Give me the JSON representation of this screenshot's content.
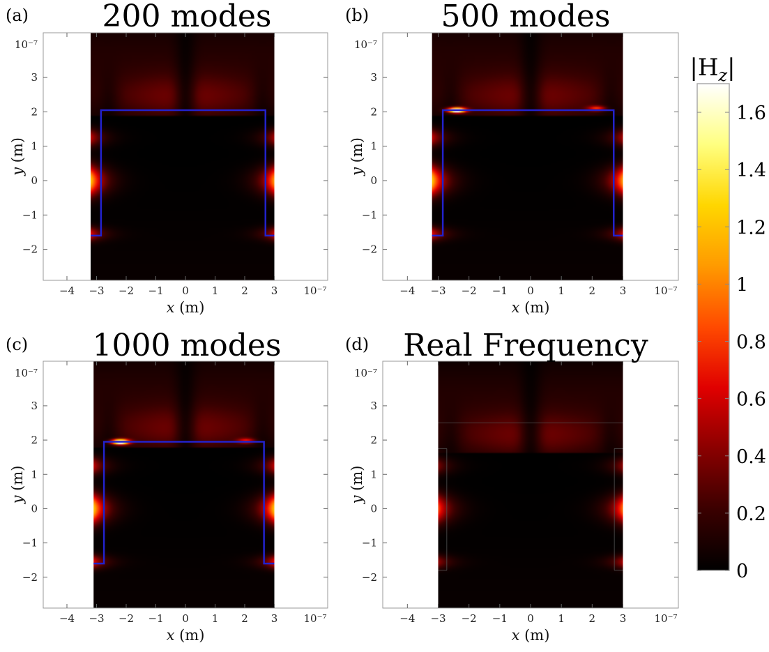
{
  "chart_data": [
    {
      "type": "heatmap",
      "panel_label": "(a)",
      "title": "200 modes",
      "xlabel": "x (m)",
      "ylabel": "y (m)",
      "x_scale_label": "10⁻⁷",
      "y_scale_label": "10⁻⁷",
      "xlim": [
        -4.8,
        4.8
      ],
      "ylim": [
        -2.9,
        4.3
      ],
      "x_ticks": [
        -4,
        -3,
        -2,
        -1,
        0,
        1,
        2,
        3
      ],
      "x_tick_labels": [
        "−4",
        "−3",
        "−2",
        "−1",
        "0",
        "1",
        "2",
        "3"
      ],
      "y_ticks": [
        -2,
        -1,
        0,
        1,
        2,
        3
      ],
      "y_tick_labels": [
        "−2",
        "−1",
        "0",
        "1",
        "2",
        "3"
      ],
      "field_x_range": [
        -3.2,
        3.0
      ],
      "field_y_range": [
        -2.9,
        4.3
      ],
      "outline": [
        [
          -3.2,
          -1.6
        ],
        [
          -2.85,
          -1.6
        ],
        [
          -2.85,
          2.05
        ],
        [
          2.7,
          2.05
        ],
        [
          2.7,
          -1.6
        ],
        [
          3.0,
          -1.6
        ]
      ],
      "hotspots": [],
      "grid": false
    },
    {
      "type": "heatmap",
      "panel_label": "(b)",
      "title": "500 modes",
      "xlabel": "x (m)",
      "ylabel": "y (m)",
      "x_scale_label": "10⁻⁷",
      "y_scale_label": "10⁻⁷",
      "xlim": [
        -4.8,
        4.8
      ],
      "ylim": [
        -2.9,
        4.3
      ],
      "x_ticks": [
        -4,
        -3,
        -2,
        -1,
        0,
        1,
        2,
        3
      ],
      "x_tick_labels": [
        "−4",
        "−3",
        "−2",
        "−1",
        "0",
        "1",
        "2",
        "3"
      ],
      "y_ticks": [
        -2,
        -1,
        0,
        1,
        2,
        3
      ],
      "y_tick_labels": [
        "−2",
        "−1",
        "0",
        "1",
        "2",
        "3"
      ],
      "field_x_range": [
        -3.2,
        3.0
      ],
      "field_y_range": [
        -2.9,
        4.3
      ],
      "outline": [
        [
          -3.2,
          -1.6
        ],
        [
          -2.85,
          -1.6
        ],
        [
          -2.85,
          2.05
        ],
        [
          2.7,
          2.05
        ],
        [
          2.7,
          -1.6
        ],
        [
          3.0,
          -1.6
        ]
      ],
      "hotspots": [
        [
          -2.4,
          2.05,
          1.7
        ],
        [
          2.15,
          2.1,
          0.5
        ]
      ],
      "grid": false
    },
    {
      "type": "heatmap",
      "panel_label": "(c)",
      "title": "1000 modes",
      "xlabel": "x (m)",
      "ylabel": "y (m)",
      "x_scale_label": "10⁻⁷",
      "y_scale_label": "10⁻⁷",
      "xlim": [
        -4.8,
        4.8
      ],
      "ylim": [
        -2.9,
        4.3
      ],
      "x_ticks": [
        -4,
        -3,
        -2,
        -1,
        0,
        1,
        2,
        3
      ],
      "x_tick_labels": [
        "−4",
        "−3",
        "−2",
        "−1",
        "0",
        "1",
        "2",
        "3"
      ],
      "y_ticks": [
        -2,
        -1,
        0,
        1,
        2,
        3
      ],
      "y_tick_labels": [
        "−2",
        "−1",
        "0",
        "1",
        "2",
        "3"
      ],
      "field_x_range": [
        -3.1,
        3.0
      ],
      "field_y_range": [
        -2.9,
        4.3
      ],
      "outline": [
        [
          -3.1,
          -1.6
        ],
        [
          -2.75,
          -1.6
        ],
        [
          -2.75,
          1.95
        ],
        [
          2.65,
          1.95
        ],
        [
          2.65,
          -1.6
        ],
        [
          3.0,
          -1.6
        ]
      ],
      "hotspots": [
        [
          -2.2,
          1.95,
          1.7
        ],
        [
          2.05,
          1.98,
          0.45
        ]
      ],
      "grid": false
    },
    {
      "type": "heatmap",
      "panel_label": "(d)",
      "title": "Real Frequency",
      "xlabel": "x (m)",
      "ylabel": "y (m)",
      "x_scale_label": "10⁻⁷",
      "y_scale_label": "10⁻⁷",
      "xlim": [
        -4.8,
        4.8
      ],
      "ylim": [
        -2.9,
        4.3
      ],
      "x_ticks": [
        -4,
        -3,
        -2,
        -1,
        0,
        1,
        2,
        3
      ],
      "x_tick_labels": [
        "−4",
        "−3",
        "−2",
        "−1",
        "0",
        "1",
        "2",
        "3"
      ],
      "y_ticks": [
        -2,
        -1,
        0,
        1,
        2,
        3
      ],
      "y_tick_labels": [
        "−2",
        "−1",
        "0",
        "1",
        "2",
        "3"
      ],
      "field_x_range": [
        -3.0,
        3.0
      ],
      "field_y_range": [
        -2.9,
        4.3
      ],
      "outline": [],
      "hotspots": [],
      "grid": false
    }
  ],
  "colorbar": {
    "label": "|H_z|",
    "label_main": "|H",
    "label_sub": "z",
    "label_end": "|",
    "range": [
      0,
      1.7
    ],
    "ticks": [
      0,
      0.2,
      0.4,
      0.6,
      0.8,
      1,
      1.2,
      1.4,
      1.6
    ],
    "tick_labels": [
      "0",
      "0.2",
      "0.4",
      "0.6",
      "0.8",
      "1",
      "1.2",
      "1.4",
      "1.6"
    ],
    "colormap": [
      "#000000",
      "#3a0000",
      "#8a0000",
      "#e00000",
      "#ff4a00",
      "#ff9a00",
      "#ffd600",
      "#ffff80",
      "#ffffff"
    ]
  },
  "colors": {
    "outline": "#2222cc",
    "axis": "#999999"
  }
}
